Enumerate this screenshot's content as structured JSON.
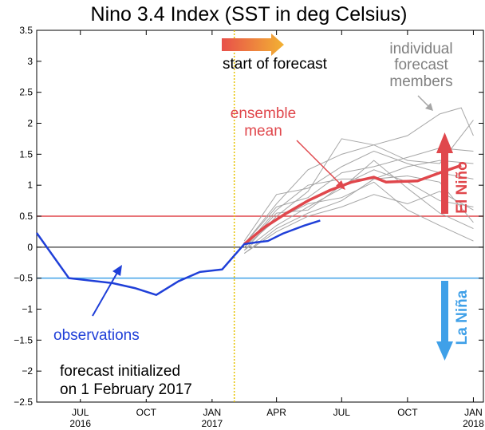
{
  "chart_data": {
    "type": "line",
    "title": "Nino 3.4 Index (SST in deg Celsius)",
    "ylim": [
      -2.5,
      3.5
    ],
    "y_ticks": [
      -2.5,
      -2,
      -1.5,
      -1,
      -0.5,
      0,
      0.5,
      1,
      1.5,
      2,
      2.5,
      3,
      3.5
    ],
    "x_ticks": [
      {
        "month": "JUL",
        "year": "2016",
        "t": "2016-07"
      },
      {
        "month": "OCT",
        "year": "",
        "t": "2016-10"
      },
      {
        "month": "JAN",
        "year": "2017",
        "t": "2017-01"
      },
      {
        "month": "APR",
        "year": "",
        "t": "2017-04"
      },
      {
        "month": "JUL",
        "year": "",
        "t": "2017-07"
      },
      {
        "month": "OCT",
        "year": "",
        "t": "2017-10"
      },
      {
        "month": "JAN",
        "year": "2018",
        "t": "2018-01"
      }
    ],
    "x_range": [
      "2016-05-01",
      "2018-01-15"
    ],
    "grid": false,
    "thresholds": [
      {
        "value": 0.5,
        "color": "#e0474c"
      },
      {
        "value": -0.5,
        "color": "#3fa0e8"
      },
      {
        "value": 0,
        "color": "#000000"
      }
    ],
    "forecast_start": "2017-02-01",
    "observations": {
      "color": "#1f3fd8",
      "points": [
        [
          "2016-05-01",
          0.23
        ],
        [
          "2016-06-15",
          -0.5
        ],
        [
          "2016-08-15",
          -0.58
        ],
        [
          "2016-09-15",
          -0.66
        ],
        [
          "2016-10-15",
          -0.77
        ],
        [
          "2016-11-15",
          -0.55
        ],
        [
          "2016-12-15",
          -0.4
        ],
        [
          "2017-01-15",
          -0.36
        ],
        [
          "2017-02-15",
          0.05
        ],
        [
          "2017-03-05",
          0.08
        ],
        [
          "2017-03-20",
          0.1
        ],
        [
          "2017-04-10",
          0.22
        ],
        [
          "2017-05-10",
          0.35
        ],
        [
          "2017-06-01",
          0.43
        ]
      ]
    },
    "ensemble_mean": {
      "color": "#e0474c",
      "points": [
        [
          "2017-02-15",
          0.05
        ],
        [
          "2017-03-15",
          0.32
        ],
        [
          "2017-04-15",
          0.55
        ],
        [
          "2017-05-15",
          0.75
        ],
        [
          "2017-06-15",
          0.92
        ],
        [
          "2017-07-15",
          1.05
        ],
        [
          "2017-08-15",
          1.13
        ],
        [
          "2017-09-01",
          1.05
        ],
        [
          "2017-10-15",
          1.07
        ],
        [
          "2017-11-15",
          1.2
        ],
        [
          "2017-12-15",
          1.32
        ]
      ]
    },
    "members": [
      [
        [
          "2017-02-15",
          0.05
        ],
        [
          "2017-04-01",
          0.7
        ],
        [
          "2017-05-15",
          1.25
        ],
        [
          "2017-07-01",
          1.5
        ],
        [
          "2017-08-15",
          1.65
        ],
        [
          "2017-10-01",
          1.8
        ],
        [
          "2017-11-15",
          2.15
        ],
        [
          "2017-12-15",
          2.25
        ],
        [
          "2018-01-01",
          1.8
        ]
      ],
      [
        [
          "2017-02-15",
          -0.05
        ],
        [
          "2017-04-01",
          0.5
        ],
        [
          "2017-05-15",
          0.9
        ],
        [
          "2017-07-01",
          1.75
        ],
        [
          "2017-08-15",
          1.65
        ],
        [
          "2017-10-01",
          1.4
        ],
        [
          "2017-11-15",
          1.35
        ],
        [
          "2018-01-01",
          2.05
        ]
      ],
      [
        [
          "2017-02-15",
          0.1
        ],
        [
          "2017-04-01",
          0.85
        ],
        [
          "2017-05-15",
          0.95
        ],
        [
          "2017-07-01",
          1.3
        ],
        [
          "2017-08-15",
          1.55
        ],
        [
          "2017-10-01",
          1.35
        ],
        [
          "2017-11-15",
          1.2
        ],
        [
          "2018-01-01",
          1.1
        ]
      ],
      [
        [
          "2017-02-15",
          0.0
        ],
        [
          "2017-04-01",
          0.45
        ],
        [
          "2017-05-15",
          0.7
        ],
        [
          "2017-07-01",
          0.8
        ],
        [
          "2017-08-15",
          1.05
        ],
        [
          "2017-10-01",
          0.6
        ],
        [
          "2017-11-15",
          0.35
        ],
        [
          "2018-01-01",
          0.1
        ]
      ],
      [
        [
          "2017-02-15",
          -0.1
        ],
        [
          "2017-04-01",
          0.3
        ],
        [
          "2017-05-15",
          0.55
        ],
        [
          "2017-07-01",
          0.75
        ],
        [
          "2017-08-15",
          1.1
        ],
        [
          "2017-10-01",
          1.15
        ],
        [
          "2017-11-15",
          1.05
        ],
        [
          "2018-01-01",
          0.4
        ]
      ],
      [
        [
          "2017-02-15",
          -0.1
        ],
        [
          "2017-04-01",
          0.25
        ],
        [
          "2017-05-15",
          0.5
        ],
        [
          "2017-07-01",
          0.65
        ],
        [
          "2017-08-15",
          0.85
        ],
        [
          "2017-10-01",
          0.7
        ],
        [
          "2017-11-15",
          0.9
        ],
        [
          "2018-01-01",
          0.6
        ]
      ],
      [
        [
          "2017-02-15",
          0.0
        ],
        [
          "2017-04-01",
          0.6
        ],
        [
          "2017-05-15",
          1.0
        ],
        [
          "2017-07-01",
          1.1
        ],
        [
          "2017-08-15",
          1.1
        ],
        [
          "2017-10-01",
          1.3
        ],
        [
          "2017-11-15",
          1.4
        ],
        [
          "2018-01-01",
          1.35
        ]
      ],
      [
        [
          "2017-02-15",
          0.05
        ],
        [
          "2017-04-01",
          0.65
        ],
        [
          "2017-05-15",
          0.8
        ],
        [
          "2017-07-01",
          1.2
        ],
        [
          "2017-08-15",
          1.3
        ],
        [
          "2017-10-01",
          1.45
        ],
        [
          "2017-11-15",
          1.6
        ],
        [
          "2018-01-01",
          1.55
        ]
      ],
      [
        [
          "2017-02-15",
          -0.05
        ],
        [
          "2017-04-01",
          0.35
        ],
        [
          "2017-05-15",
          0.65
        ],
        [
          "2017-07-01",
          0.95
        ],
        [
          "2017-08-15",
          1.4
        ],
        [
          "2017-10-01",
          0.95
        ],
        [
          "2017-11-15",
          0.55
        ],
        [
          "2018-01-01",
          0.3
        ]
      ],
      [
        [
          "2017-02-15",
          0.0
        ],
        [
          "2017-04-01",
          0.55
        ],
        [
          "2017-05-15",
          0.6
        ],
        [
          "2017-07-01",
          1.0
        ],
        [
          "2017-08-15",
          1.25
        ],
        [
          "2017-10-01",
          1.05
        ],
        [
          "2017-11-15",
          0.75
        ],
        [
          "2018-01-01",
          0.65
        ]
      ]
    ],
    "member_color": "#a6a6a6",
    "annotations": {
      "start_of_forecast": "start of forecast",
      "individual_members": [
        "individual",
        "forecast",
        "members"
      ],
      "ensemble_mean": [
        "ensemble",
        "mean"
      ],
      "observations": "observations",
      "initialized": [
        "forecast initialized",
        "on 1 February 2017"
      ],
      "el_nino": "El Niño",
      "la_nina": "La Niña"
    },
    "colors": {
      "forecast_start_line": "#e6c200",
      "arrow_start": "#e8504a",
      "arrow_end": "#f2b233",
      "obs_arrow": "#1f3fd8",
      "mean_arrow": "#e0474c",
      "members_arrow": "#a6a6a6",
      "el_nino": "#e0474c",
      "la_nina": "#3fa0e8"
    }
  }
}
